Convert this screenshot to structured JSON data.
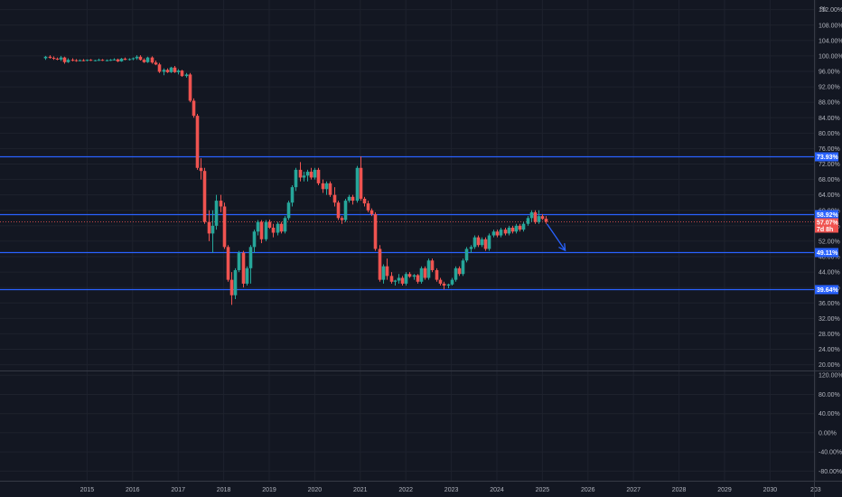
{
  "colors": {
    "background": "#131722",
    "grid": "#1e222d",
    "up": "#26a69a",
    "down": "#ef5350",
    "level": "#2962ff",
    "arrow": "#2962ff",
    "axis_text": "#b2b5be",
    "separator": "#363a45"
  },
  "scale_unit": "%",
  "chart_data": [
    {
      "type": "candlestick",
      "title": "",
      "x_unit": "year",
      "x_ticks": [
        "2015",
        "2016",
        "2017",
        "2018",
        "2019",
        "2020",
        "2021",
        "2022",
        "2023",
        "2024",
        "2025",
        "2026",
        "2027",
        "2028",
        "2029",
        "2030",
        "203"
      ],
      "y_ticks": [
        "112.00%",
        "108.00%",
        "104.00%",
        "100.00%",
        "96.00%",
        "92.00%",
        "88.00%",
        "84.00%",
        "80.00%",
        "76.00%",
        "72.00%",
        "68.00%",
        "64.00%",
        "60.00%",
        "56.00%",
        "52.00%",
        "48.00%",
        "44.00%",
        "40.00%",
        "36.00%",
        "32.00%",
        "28.00%",
        "24.00%",
        "20.00%"
      ],
      "ylim": [
        18.5,
        114.5
      ],
      "xlim": [
        2014.0,
        2031.0
      ],
      "grid": true,
      "levels": [
        {
          "value": 73.93,
          "label": "73.93%"
        },
        {
          "value": 58.92,
          "label": "58.92%"
        },
        {
          "value": 49.11,
          "label": "49.11%"
        },
        {
          "value": 39.64,
          "label": "39.64%"
        }
      ],
      "last_price": {
        "value": 57.07,
        "label": "57.07%",
        "countdown": "7d 8h"
      },
      "arrow": {
        "from": {
          "x": 2025.1,
          "y": 56.5
        },
        "to": {
          "x": 2025.5,
          "y": 49.6
        }
      },
      "candles": [
        [
          2014.08,
          99.4,
          100.0,
          99.0,
          99.8
        ],
        [
          2014.17,
          99.8,
          100.2,
          99.3,
          99.5
        ],
        [
          2014.25,
          99.5,
          99.9,
          99.0,
          99.3
        ],
        [
          2014.33,
          99.3,
          99.6,
          98.9,
          99.1
        ],
        [
          2014.42,
          99.1,
          100.0,
          98.7,
          99.6
        ],
        [
          2014.5,
          99.6,
          99.8,
          98.0,
          98.4
        ],
        [
          2014.58,
          98.4,
          99.4,
          98.2,
          99.0
        ],
        [
          2014.67,
          99.0,
          99.4,
          98.6,
          98.9
        ],
        [
          2014.75,
          98.9,
          99.2,
          98.5,
          98.8
        ],
        [
          2014.83,
          98.8,
          99.1,
          98.6,
          98.9
        ],
        [
          2014.92,
          98.9,
          99.2,
          98.6,
          98.8
        ],
        [
          2015.0,
          98.8,
          99.1,
          98.6,
          99.0
        ],
        [
          2015.08,
          99.0,
          99.2,
          98.7,
          98.8
        ],
        [
          2015.17,
          98.8,
          99.0,
          98.6,
          98.9
        ],
        [
          2015.25,
          98.9,
          99.3,
          98.7,
          99.0
        ],
        [
          2015.33,
          99.0,
          99.2,
          98.7,
          98.8
        ],
        [
          2015.42,
          98.8,
          99.1,
          98.6,
          98.9
        ],
        [
          2015.5,
          98.9,
          99.2,
          98.7,
          99.0
        ],
        [
          2015.58,
          99.0,
          99.4,
          98.8,
          99.1
        ],
        [
          2015.67,
          99.1,
          99.3,
          98.4,
          98.6
        ],
        [
          2015.75,
          98.6,
          99.5,
          98.5,
          99.3
        ],
        [
          2015.83,
          99.3,
          99.6,
          98.9,
          99.0
        ],
        [
          2015.92,
          99.0,
          99.4,
          98.8,
          99.2
        ],
        [
          2016.0,
          99.2,
          99.6,
          98.9,
          99.4
        ],
        [
          2016.08,
          99.4,
          100.2,
          99.0,
          99.8
        ],
        [
          2016.17,
          99.8,
          100.2,
          98.8,
          99.0
        ],
        [
          2016.25,
          99.0,
          99.4,
          98.2,
          98.4
        ],
        [
          2016.33,
          98.4,
          99.8,
          98.2,
          99.6
        ],
        [
          2016.42,
          99.6,
          99.9,
          98.0,
          98.3
        ],
        [
          2016.5,
          98.3,
          98.8,
          97.6,
          97.8
        ],
        [
          2016.58,
          97.8,
          98.2,
          95.6,
          95.9
        ],
        [
          2016.67,
          95.9,
          96.8,
          95.0,
          96.4
        ],
        [
          2016.75,
          96.4,
          96.8,
          95.6,
          95.8
        ],
        [
          2016.83,
          95.8,
          97.2,
          95.6,
          97.0
        ],
        [
          2016.92,
          97.0,
          97.4,
          95.6,
          95.8
        ],
        [
          2017.0,
          95.8,
          96.6,
          95.2,
          96.2
        ],
        [
          2017.08,
          96.2,
          96.4,
          94.6,
          94.8
        ],
        [
          2017.17,
          94.8,
          95.6,
          94.4,
          95.2
        ],
        [
          2017.25,
          95.2,
          95.6,
          88.0,
          88.4
        ],
        [
          2017.33,
          88.4,
          89.0,
          84.0,
          84.5
        ],
        [
          2017.42,
          84.5,
          85.0,
          70.5,
          71.0
        ],
        [
          2017.5,
          71.0,
          73.5,
          68.0,
          70.2
        ],
        [
          2017.58,
          70.2,
          71.0,
          56.5,
          57.0
        ],
        [
          2017.67,
          57.0,
          60.0,
          52.0,
          54.0
        ],
        [
          2017.75,
          54.0,
          60.0,
          49.0,
          56.0
        ],
        [
          2017.83,
          56.0,
          64.0,
          55.0,
          62.5
        ],
        [
          2017.92,
          62.5,
          64.0,
          59.5,
          61.0
        ],
        [
          2018.0,
          61.0,
          62.0,
          50.0,
          50.5
        ],
        [
          2018.08,
          50.5,
          51.0,
          41.5,
          42.0
        ],
        [
          2018.17,
          42.0,
          44.0,
          35.5,
          38.0
        ],
        [
          2018.25,
          38.0,
          45.0,
          37.0,
          44.5
        ],
        [
          2018.33,
          44.5,
          49.5,
          44.0,
          49.0
        ],
        [
          2018.42,
          49.0,
          49.5,
          40.0,
          41.0
        ],
        [
          2018.5,
          41.0,
          45.5,
          40.5,
          45.0
        ],
        [
          2018.58,
          45.0,
          51.0,
          41.0,
          50.5
        ],
        [
          2018.67,
          50.5,
          55.0,
          49.0,
          54.5
        ],
        [
          2018.75,
          54.5,
          57.5,
          53.5,
          57.0
        ],
        [
          2018.83,
          57.0,
          57.5,
          51.5,
          52.5
        ],
        [
          2018.92,
          52.5,
          57.5,
          52.0,
          57.0
        ],
        [
          2019.0,
          57.0,
          57.6,
          55.2,
          55.5
        ],
        [
          2019.08,
          55.5,
          56.5,
          53.0,
          54.2
        ],
        [
          2019.17,
          54.2,
          57.0,
          53.5,
          56.5
        ],
        [
          2019.25,
          56.5,
          57.0,
          54.0,
          54.5
        ],
        [
          2019.33,
          54.5,
          58.5,
          54.0,
          58.0
        ],
        [
          2019.42,
          58.0,
          62.5,
          57.5,
          62.0
        ],
        [
          2019.5,
          62.0,
          66.5,
          61.0,
          66.0
        ],
        [
          2019.58,
          66.0,
          71.0,
          65.0,
          70.5
        ],
        [
          2019.67,
          70.5,
          72.5,
          67.5,
          68.5
        ],
        [
          2019.75,
          68.5,
          70.0,
          67.5,
          69.0
        ],
        [
          2019.83,
          69.0,
          70.5,
          67.5,
          70.0
        ],
        [
          2019.92,
          70.0,
          71.0,
          68.0,
          68.5
        ],
        [
          2020.0,
          68.5,
          71.0,
          68.0,
          70.5
        ],
        [
          2020.08,
          70.5,
          71.0,
          66.5,
          67.0
        ],
        [
          2020.17,
          67.0,
          68.0,
          64.5,
          65.5
        ],
        [
          2020.25,
          65.5,
          67.5,
          64.0,
          67.0
        ],
        [
          2020.33,
          67.0,
          67.5,
          63.5,
          64.0
        ],
        [
          2020.42,
          64.0,
          66.0,
          61.0,
          62.0
        ],
        [
          2020.5,
          62.0,
          62.5,
          57.5,
          58.0
        ],
        [
          2020.58,
          58.0,
          58.5,
          56.5,
          57.5
        ],
        [
          2020.67,
          57.5,
          63.0,
          57.0,
          62.5
        ],
        [
          2020.75,
          62.5,
          64.0,
          62.0,
          63.5
        ],
        [
          2020.83,
          63.5,
          64.0,
          61.5,
          62.5
        ],
        [
          2020.92,
          62.5,
          71.5,
          62.0,
          71.0
        ],
        [
          2021.0,
          71.0,
          74.0,
          62.5,
          63.0
        ],
        [
          2021.08,
          63.0,
          63.5,
          61.0,
          61.8
        ],
        [
          2021.17,
          61.8,
          62.5,
          59.5,
          60.0
        ],
        [
          2021.25,
          60.0,
          60.5,
          58.5,
          59.0
        ],
        [
          2021.33,
          59.0,
          59.5,
          49.5,
          50.0
        ],
        [
          2021.42,
          50.0,
          51.0,
          41.5,
          42.0
        ],
        [
          2021.5,
          42.0,
          46.0,
          41.0,
          45.5
        ],
        [
          2021.58,
          45.5,
          47.5,
          42.0,
          43.0
        ],
        [
          2021.67,
          43.0,
          44.0,
          41.0,
          41.5
        ],
        [
          2021.75,
          41.5,
          42.0,
          40.5,
          41.8
        ],
        [
          2021.83,
          41.8,
          43.5,
          41.0,
          42.5
        ],
        [
          2021.92,
          42.5,
          43.0,
          40.5,
          41.0
        ],
        [
          2022.0,
          41.0,
          44.0,
          40.5,
          43.5
        ],
        [
          2022.08,
          43.5,
          44.0,
          42.5,
          42.8
        ],
        [
          2022.17,
          42.8,
          43.5,
          42.0,
          43.2
        ],
        [
          2022.25,
          43.2,
          43.5,
          41.0,
          41.5
        ],
        [
          2022.33,
          41.5,
          45.5,
          41.0,
          45.0
        ],
        [
          2022.42,
          45.0,
          45.5,
          42.0,
          42.5
        ],
        [
          2022.5,
          42.5,
          47.5,
          42.0,
          47.0
        ],
        [
          2022.58,
          47.0,
          47.5,
          44.0,
          44.5
        ],
        [
          2022.67,
          44.5,
          45.0,
          41.5,
          42.0
        ],
        [
          2022.75,
          42.0,
          42.5,
          40.5,
          41.0
        ],
        [
          2022.83,
          41.0,
          41.5,
          39.5,
          40.5
        ],
        [
          2022.92,
          40.5,
          41.0,
          39.8,
          40.8
        ],
        [
          2023.0,
          40.8,
          42.5,
          40.5,
          42.0
        ],
        [
          2023.08,
          42.0,
          45.5,
          41.5,
          45.0
        ],
        [
          2023.17,
          45.0,
          45.5,
          43.0,
          43.5
        ],
        [
          2023.25,
          43.5,
          47.5,
          43.0,
          47.0
        ],
        [
          2023.33,
          47.0,
          50.5,
          46.5,
          50.0
        ],
        [
          2023.42,
          50.0,
          51.0,
          49.0,
          50.5
        ],
        [
          2023.5,
          50.5,
          53.5,
          50.0,
          53.0
        ],
        [
          2023.58,
          53.0,
          53.5,
          50.5,
          51.0
        ],
        [
          2023.67,
          51.0,
          53.0,
          50.5,
          52.5
        ],
        [
          2023.75,
          52.5,
          53.0,
          49.5,
          50.0
        ],
        [
          2023.83,
          50.0,
          54.0,
          49.5,
          53.5
        ],
        [
          2023.92,
          53.5,
          55.0,
          53.0,
          54.5
        ],
        [
          2024.0,
          54.5,
          55.0,
          53.0,
          53.5
        ],
        [
          2024.08,
          53.5,
          55.5,
          53.0,
          55.0
        ],
        [
          2024.17,
          55.0,
          55.5,
          53.5,
          54.0
        ],
        [
          2024.25,
          54.0,
          56.0,
          53.5,
          55.5
        ],
        [
          2024.33,
          55.5,
          56.0,
          54.0,
          54.5
        ],
        [
          2024.42,
          54.5,
          56.5,
          54.0,
          56.0
        ],
        [
          2024.5,
          56.0,
          56.5,
          54.5,
          55.0
        ],
        [
          2024.58,
          55.0,
          57.0,
          54.5,
          56.5
        ],
        [
          2024.67,
          56.5,
          58.5,
          56.0,
          58.0
        ],
        [
          2024.75,
          58.0,
          60.0,
          57.0,
          59.5
        ],
        [
          2024.83,
          59.5,
          60.0,
          56.5,
          57.0
        ],
        [
          2024.92,
          57.0,
          60.0,
          56.5,
          58.5
        ],
        [
          2025.0,
          58.5,
          59.0,
          57.5,
          57.8
        ],
        [
          2025.08,
          57.8,
          58.5,
          56.5,
          57.07
        ]
      ]
    },
    {
      "type": "line",
      "title": "",
      "y_ticks": [
        "120.00%",
        "80.00%",
        "40.00%",
        "0.00%",
        "-40.00%",
        "-80.00%"
      ],
      "ylim": [
        -100,
        128
      ],
      "series": []
    }
  ]
}
